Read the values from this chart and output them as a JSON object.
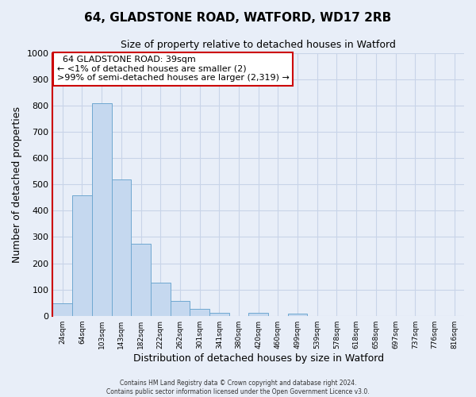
{
  "title": "64, GLADSTONE ROAD, WATFORD, WD17 2RB",
  "subtitle": "Size of property relative to detached houses in Watford",
  "xlabel": "Distribution of detached houses by size in Watford",
  "ylabel": "Number of detached properties",
  "bar_labels": [
    "24sqm",
    "64sqm",
    "103sqm",
    "143sqm",
    "182sqm",
    "222sqm",
    "262sqm",
    "301sqm",
    "341sqm",
    "380sqm",
    "420sqm",
    "460sqm",
    "499sqm",
    "539sqm",
    "578sqm",
    "618sqm",
    "658sqm",
    "697sqm",
    "737sqm",
    "776sqm",
    "816sqm"
  ],
  "bar_values": [
    48,
    460,
    808,
    520,
    275,
    125,
    58,
    25,
    12,
    0,
    10,
    0,
    8,
    0,
    0,
    0,
    0,
    0,
    0,
    0,
    0
  ],
  "bar_color": "#c5d8ef",
  "bar_edge_color": "#6fa8d0",
  "highlight_color": "#cc0000",
  "ylim": [
    0,
    1000
  ],
  "yticks": [
    0,
    100,
    200,
    300,
    400,
    500,
    600,
    700,
    800,
    900,
    1000
  ],
  "annotation_title": "64 GLADSTONE ROAD: 39sqm",
  "annotation_line1": "← <1% of detached houses are smaller (2)",
  "annotation_line2": ">99% of semi-detached houses are larger (2,319) →",
  "annotation_box_color": "#ffffff",
  "annotation_border_color": "#cc0000",
  "grid_color": "#c8d4e8",
  "bg_color": "#e8eef8",
  "footer1": "Contains HM Land Registry data © Crown copyright and database right 2024.",
  "footer2": "Contains public sector information licensed under the Open Government Licence v3.0."
}
